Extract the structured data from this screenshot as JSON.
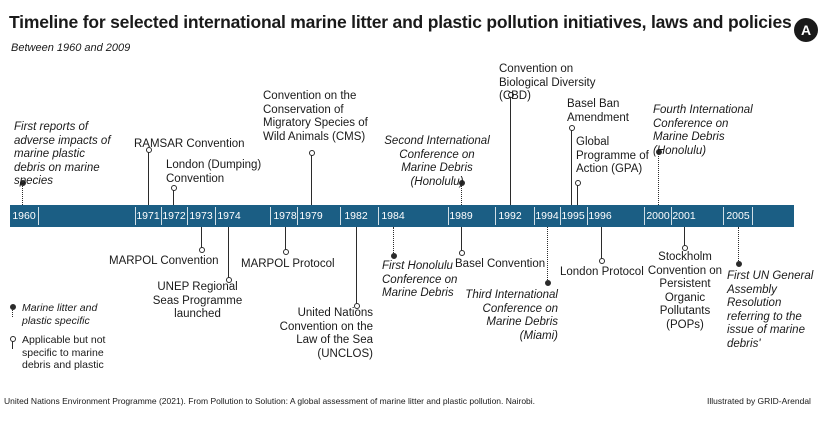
{
  "title": "Timeline for selected international marine litter and plastic pollution initiatives, laws and policies",
  "subtitle": "Between 1960 and 2009",
  "badge": "A",
  "years": [
    "1960",
    "1971",
    "1972",
    "1973",
    "1974",
    "1978",
    "1979",
    "1982",
    "1984",
    "1989",
    "1992",
    "1994",
    "1995",
    "1996",
    "2000",
    "2001",
    "2005"
  ],
  "events": {
    "e1960": "First reports of adverse impacts of marine plastic debris on marine species",
    "e1971a": "RAMSAR Convention",
    "e1972a": "London (Dumping) Convention",
    "e1973b": "MARPOL Convention",
    "e1974b": "UNEP Regional Seas Programme launched",
    "e1978b": "MARPOL Protocol",
    "e1979a": "Convention on the Conservation of Migratory Species of Wild Animals (CMS)",
    "e1982b": "United Nations Convention on the Law of the Sea (UNCLOS)",
    "e1984b": "First Honolulu Conference on Marine Debris",
    "e1989a": "Second International Conference on Marine Debris (Honolulu)",
    "e1989b": "Basel Convention",
    "e1992a": "Convention on Biological Diversity (CBD)",
    "e1994b": "Third International Conference on Marine Debris (Miami)",
    "e1995a1": "Basel Ban Amendment",
    "e1995a2": "Global Programme of Action (GPA)",
    "e1996b": "London Protocol",
    "e2000a": "Fourth International Conference on Marine Debris (Honolulu)",
    "e2001b": "Stockholm Convention on Persistent Organic Pollutants (POPs)",
    "e2005b": "First UN General Assembly Resolution referring to the issue of marine debris'"
  },
  "legend": {
    "specific": "Marine litter and plastic specific",
    "general": "Applicable but not specific to marine debris and plastic"
  },
  "footer": {
    "source": "United Nations Environment Programme (2021). From Pollution to Solution: A global assessment of marine litter and plastic pollution. Nairobi.",
    "credit": "Illustrated by GRID-Arendal"
  },
  "colors": {
    "bar": "#1b5e84",
    "text": "#1a1a1a"
  }
}
